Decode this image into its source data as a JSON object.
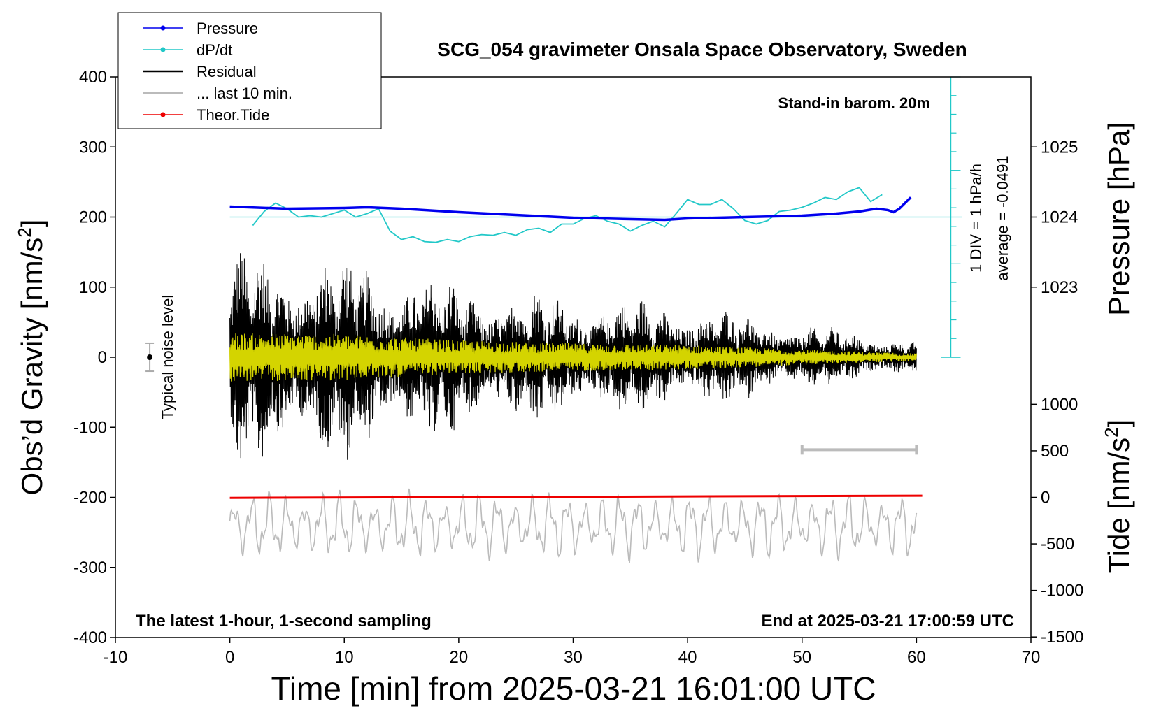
{
  "chart_data": {
    "type": "line",
    "title": "SCG_054 gravimeter Onsala Space Observatory, Sweden",
    "xlabel": "Time [min] from 2025-03-21 16:01:00 UTC",
    "ylabel_left": "Obs’d Gravity [nm/s",
    "ylabel_left_sup": "2",
    "ylabel_left_end": "]",
    "ylabel_right_pressure": "Pressure [hPa]",
    "ylabel_right_tide": "Tide [nm/s",
    "ylabel_right_tide_sup": "2",
    "ylabel_right_tide_end": "]",
    "xlim": [
      -10,
      70
    ],
    "ylim": [
      -400,
      400
    ],
    "x_ticks": [
      "-10",
      "0",
      "10",
      "20",
      "30",
      "40",
      "50",
      "60",
      "70"
    ],
    "y_ticks": [
      "400",
      "300",
      "200",
      "100",
      "0",
      "-100",
      "-200",
      "-300",
      "-400"
    ],
    "pressure_ticks": [
      "1025",
      "1024",
      "1023"
    ],
    "pressure_tick_values": [
      1025,
      1024,
      1023
    ],
    "tide_ticks": [
      "1000",
      "500",
      "0",
      "-500",
      "-1000",
      "-1500"
    ],
    "tide_tick_values": [
      1000,
      500,
      0,
      -500,
      -1000,
      -1500
    ],
    "legend": [
      {
        "label": "Pressure",
        "color": "#0000ee",
        "marker": true
      },
      {
        "label": "dP/dt",
        "color": "#22c8c8",
        "marker": true
      },
      {
        "label": "Residual",
        "color": "#000000",
        "marker": false
      },
      {
        "label": "... last 10 min.",
        "color": "#bbbbbb",
        "marker": false
      },
      {
        "label": "Theor.Tide",
        "color": "#ee0000",
        "marker": true
      }
    ],
    "annotations": {
      "barometer": "Stand-in barom. 20m",
      "dpdt_scale": "1 DIV = 1 hPa/h",
      "dpdt_average": "average = -0.0491",
      "noise": "Typical noise level",
      "bottom_left": "The latest 1-hour, 1-second sampling",
      "bottom_right": "End at 2025-03-21 17:00:59 UTC"
    },
    "series": [
      {
        "name": "Pressure",
        "color": "#0000ee",
        "unit": "hPa",
        "x": [
          0,
          5,
          10,
          12,
          15,
          20,
          25,
          30,
          35,
          38,
          40,
          45,
          50,
          53,
          55,
          56.5,
          57.5,
          58,
          58.5,
          59,
          59.5
        ],
        "y": [
          1024.15,
          1024.12,
          1024.13,
          1024.14,
          1024.12,
          1024.07,
          1024.03,
          1023.99,
          1023.97,
          1023.96,
          1023.98,
          1024.0,
          1024.02,
          1024.05,
          1024.08,
          1024.12,
          1024.1,
          1024.07,
          1024.12,
          1024.2,
          1024.28
        ]
      },
      {
        "name": "dP/dt",
        "color": "#22c8c8",
        "unit": "nm/s2",
        "x": [
          2,
          3,
          4,
          5,
          6,
          7,
          8,
          9,
          10,
          11,
          12,
          13,
          14,
          15,
          16,
          17,
          18,
          19,
          20,
          21,
          22,
          23,
          24,
          25,
          26,
          27,
          28,
          29,
          30,
          31,
          32,
          33,
          34,
          35,
          36,
          37,
          38,
          39,
          40,
          41,
          42,
          43,
          44,
          45,
          46,
          47,
          48,
          49,
          50,
          51,
          52,
          53,
          54,
          55,
          56,
          57
        ],
        "y": [
          188,
          208,
          220,
          212,
          200,
          202,
          200,
          205,
          210,
          200,
          205,
          212,
          180,
          168,
          172,
          165,
          164,
          168,
          165,
          172,
          175,
          174,
          178,
          174,
          182,
          184,
          178,
          190,
          190,
          198,
          202,
          194,
          190,
          180,
          188,
          194,
          186,
          205,
          225,
          218,
          218,
          225,
          212,
          195,
          190,
          195,
          208,
          210,
          214,
          220,
          228,
          225,
          236,
          242,
          222,
          232
        ]
      },
      {
        "name": "Residual",
        "color": "#000000",
        "unit": "nm/s2",
        "x_range": [
          0,
          60
        ],
        "envelope": [
          [
            0,
            160
          ],
          [
            10,
            150
          ],
          [
            20,
            110
          ],
          [
            30,
            90
          ],
          [
            40,
            80
          ],
          [
            50,
            50
          ],
          [
            60,
            25
          ]
        ]
      },
      {
        "name": "... last 10 min.",
        "color": "#bbbbbb",
        "unit": "nm/s2",
        "x_range": [
          0,
          60
        ],
        "baseline": -240,
        "amplitude": 55
      },
      {
        "name": "Theor.Tide",
        "color": "#ee0000",
        "unit": "nm/s2 (tide axis)",
        "x": [
          0,
          60.5
        ],
        "y": [
          -5,
          18
        ]
      }
    ],
    "noise_bar": {
      "x": -7,
      "center": 0,
      "low": -20,
      "high": 20
    },
    "scale_bar": {
      "x_start": 50,
      "x_end": 60,
      "y": -132
    },
    "pressure_reference_line": 1024,
    "dpdt_axis": {
      "x": 63,
      "ticks": 15
    }
  }
}
